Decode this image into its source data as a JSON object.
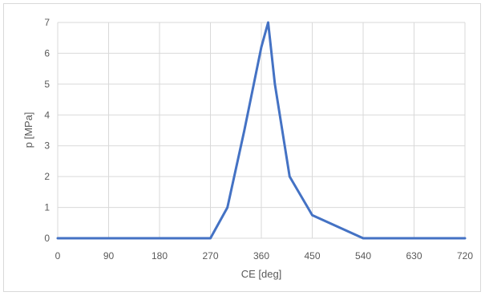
{
  "chart_data": {
    "type": "line",
    "title": "",
    "xlabel": "CE [deg]",
    "ylabel": "p [MPa]",
    "xlim": [
      0,
      720
    ],
    "ylim": [
      0,
      7
    ],
    "x_ticks": [
      0,
      90,
      180,
      270,
      360,
      450,
      540,
      630,
      720
    ],
    "y_ticks": [
      0,
      1,
      2,
      3,
      4,
      5,
      6,
      7
    ],
    "x_tick_labels": [
      "0",
      "90",
      "180",
      "270",
      "360",
      "450",
      "540",
      "630",
      "720"
    ],
    "y_tick_labels": [
      "0",
      "1",
      "2",
      "3",
      "4",
      "5",
      "6",
      "7"
    ],
    "grid": true,
    "legend": "none",
    "series": [
      {
        "color": "#4472c4",
        "x": [
          0,
          90,
          180,
          270,
          300,
          330,
          360,
          372,
          384,
          410,
          450,
          540,
          630,
          720
        ],
        "y": [
          0,
          0,
          0,
          0,
          1.0,
          3.5,
          6.2,
          7.0,
          5.0,
          2.0,
          0.75,
          0,
          0,
          0
        ]
      }
    ]
  }
}
